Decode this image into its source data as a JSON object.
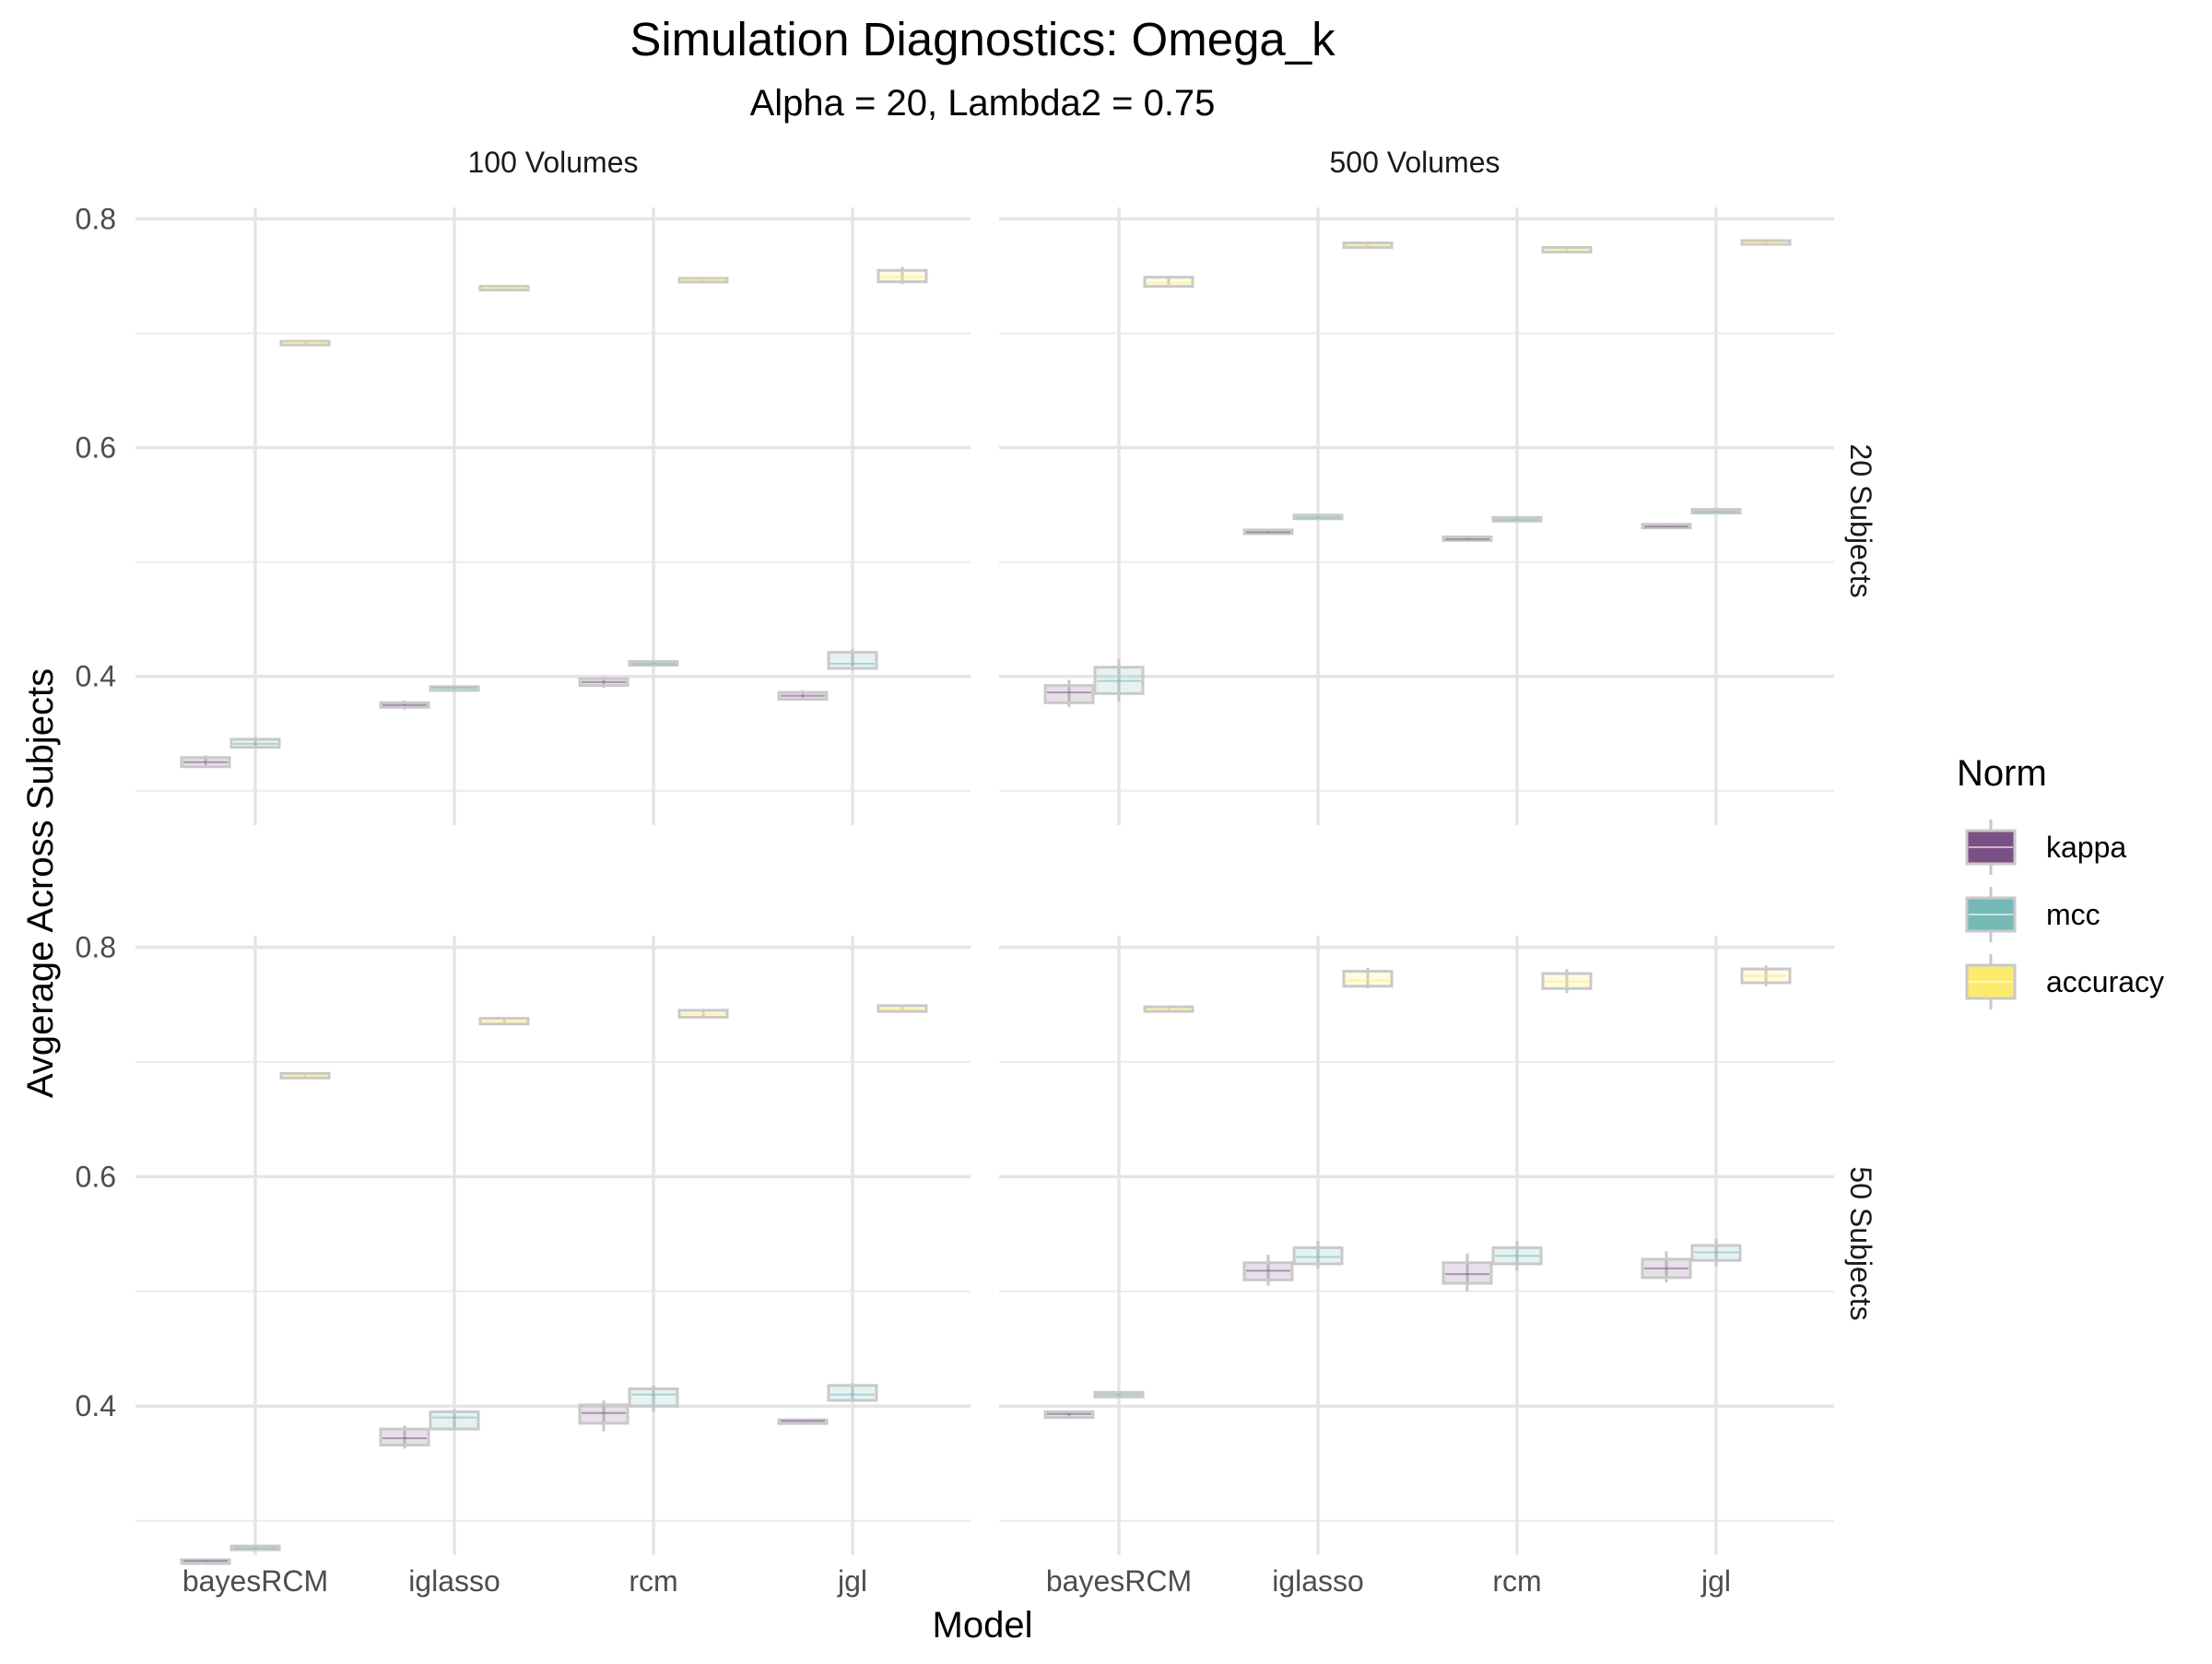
{
  "chart_data": {
    "type": "box",
    "title": "Simulation Diagnostics: Omega_k",
    "subtitle": "Alpha = 20, Lambda2 = 0.75",
    "xlabel": "Model",
    "ylabel": "Avgerage Across Subjects",
    "categories": [
      "bayesRCM",
      "iglasso",
      "rcm",
      "jgl"
    ],
    "y_ticks": [
      "0.4",
      "0.6",
      "0.8"
    ],
    "ylim": [
      0.27,
      0.81
    ],
    "grid": true,
    "facet_columns": [
      "100 Volumes",
      "500 Volumes"
    ],
    "facet_rows": [
      "20 Subjects",
      "50 Subjects"
    ],
    "legend": {
      "title": "Norm",
      "position": "right",
      "items": [
        {
          "label": "kappa",
          "color": "#7b5185"
        },
        {
          "label": "mcc",
          "color": "#74b9b6"
        },
        {
          "label": "accuracy",
          "color": "#fdeb6e"
        }
      ]
    },
    "panels": [
      {
        "column": "100 Volumes",
        "row": "20 Subjects",
        "series": [
          {
            "name": "kappa",
            "boxes": [
              {
                "min": 0.32,
                "q1": 0.321,
                "median": 0.325,
                "q3": 0.329,
                "max": 0.331
              },
              {
                "min": 0.371,
                "q1": 0.373,
                "median": 0.375,
                "q3": 0.377,
                "max": 0.379
              },
              {
                "min": 0.39,
                "q1": 0.392,
                "median": 0.395,
                "q3": 0.398,
                "max": 0.4
              },
              {
                "min": 0.379,
                "q1": 0.38,
                "median": 0.383,
                "q3": 0.386,
                "max": 0.388
              }
            ]
          },
          {
            "name": "mcc",
            "boxes": [
              {
                "min": 0.337,
                "q1": 0.338,
                "median": 0.341,
                "q3": 0.345,
                "max": 0.347
              },
              {
                "min": 0.387,
                "q1": 0.388,
                "median": 0.39,
                "q3": 0.391,
                "max": 0.392
              },
              {
                "min": 0.409,
                "q1": 0.41,
                "median": 0.411,
                "q3": 0.413,
                "max": 0.414
              },
              {
                "min": 0.405,
                "q1": 0.407,
                "median": 0.411,
                "q3": 0.421,
                "max": 0.424
              }
            ]
          },
          {
            "name": "accuracy",
            "boxes": [
              {
                "min": 0.69,
                "q1": 0.691,
                "median": 0.692,
                "q3": 0.693,
                "max": 0.693
              },
              {
                "min": 0.739,
                "q1": 0.739,
                "median": 0.74,
                "q3": 0.741,
                "max": 0.741
              },
              {
                "min": 0.746,
                "q1": 0.746,
                "median": 0.747,
                "q3": 0.748,
                "max": 0.749
              },
              {
                "min": 0.743,
                "q1": 0.745,
                "median": 0.749,
                "q3": 0.755,
                "max": 0.758
              }
            ]
          }
        ]
      },
      {
        "column": "500 Volumes",
        "row": "20 Subjects",
        "series": [
          {
            "name": "kappa",
            "boxes": [
              {
                "min": 0.373,
                "q1": 0.377,
                "median": 0.386,
                "q3": 0.392,
                "max": 0.397
              },
              {
                "min": 0.524,
                "q1": 0.525,
                "median": 0.526,
                "q3": 0.528,
                "max": 0.529
              },
              {
                "min": 0.518,
                "q1": 0.519,
                "median": 0.52,
                "q3": 0.522,
                "max": 0.523
              },
              {
                "min": 0.529,
                "q1": 0.53,
                "median": 0.531,
                "q3": 0.533,
                "max": 0.534
              }
            ]
          },
          {
            "name": "mcc",
            "boxes": [
              {
                "min": 0.378,
                "q1": 0.385,
                "median": 0.396,
                "q3": 0.408,
                "max": 0.415
              },
              {
                "min": 0.537,
                "q1": 0.538,
                "median": 0.539,
                "q3": 0.541,
                "max": 0.542
              },
              {
                "min": 0.535,
                "q1": 0.536,
                "median": 0.537,
                "q3": 0.539,
                "max": 0.54
              },
              {
                "min": 0.542,
                "q1": 0.543,
                "median": 0.544,
                "q3": 0.546,
                "max": 0.547
              }
            ]
          },
          {
            "name": "accuracy",
            "boxes": [
              {
                "min": 0.74,
                "q1": 0.741,
                "median": 0.744,
                "q3": 0.749,
                "max": 0.75
              },
              {
                "min": 0.774,
                "q1": 0.775,
                "median": 0.777,
                "q3": 0.779,
                "max": 0.779
              },
              {
                "min": 0.77,
                "q1": 0.771,
                "median": 0.773,
                "q3": 0.775,
                "max": 0.776
              },
              {
                "min": 0.778,
                "q1": 0.778,
                "median": 0.779,
                "q3": 0.781,
                "max": 0.781
              }
            ]
          }
        ]
      },
      {
        "column": "100 Volumes",
        "row": "50 Subjects",
        "series": [
          {
            "name": "kappa",
            "boxes": [
              {
                "min": 0.264,
                "q1": 0.264,
                "median": 0.265,
                "q3": 0.266,
                "max": 0.266
              },
              {
                "min": 0.363,
                "q1": 0.366,
                "median": 0.372,
                "q3": 0.38,
                "max": 0.383
              },
              {
                "min": 0.378,
                "q1": 0.385,
                "median": 0.394,
                "q3": 0.401,
                "max": 0.405
              },
              {
                "min": 0.385,
                "q1": 0.385,
                "median": 0.387,
                "q3": 0.388,
                "max": 0.388
              }
            ]
          },
          {
            "name": "mcc",
            "boxes": [
              {
                "min": 0.275,
                "q1": 0.275,
                "median": 0.276,
                "q3": 0.278,
                "max": 0.278
              },
              {
                "min": 0.38,
                "q1": 0.38,
                "median": 0.39,
                "q3": 0.395,
                "max": 0.397
              },
              {
                "min": 0.395,
                "q1": 0.4,
                "median": 0.41,
                "q3": 0.415,
                "max": 0.418
              },
              {
                "min": 0.405,
                "q1": 0.405,
                "median": 0.41,
                "q3": 0.418,
                "max": 0.42
              }
            ]
          },
          {
            "name": "accuracy",
            "boxes": [
              {
                "min": 0.686,
                "q1": 0.686,
                "median": 0.688,
                "q3": 0.69,
                "max": 0.69
              },
              {
                "min": 0.733,
                "q1": 0.733,
                "median": 0.735,
                "q3": 0.738,
                "max": 0.738
              },
              {
                "min": 0.739,
                "q1": 0.739,
                "median": 0.742,
                "q3": 0.745,
                "max": 0.745
              },
              {
                "min": 0.744,
                "q1": 0.744,
                "median": 0.746,
                "q3": 0.749,
                "max": 0.749
              }
            ]
          }
        ]
      },
      {
        "column": "500 Volumes",
        "row": "50 Subjects",
        "series": [
          {
            "name": "kappa",
            "boxes": [
              {
                "min": 0.39,
                "q1": 0.39,
                "median": 0.393,
                "q3": 0.395,
                "max": 0.395
              },
              {
                "min": 0.505,
                "q1": 0.51,
                "median": 0.518,
                "q3": 0.525,
                "max": 0.532
              },
              {
                "min": 0.5,
                "q1": 0.507,
                "median": 0.515,
                "q3": 0.525,
                "max": 0.533
              },
              {
                "min": 0.508,
                "q1": 0.512,
                "median": 0.52,
                "q3": 0.528,
                "max": 0.535
              }
            ]
          },
          {
            "name": "mcc",
            "boxes": [
              {
                "min": 0.408,
                "q1": 0.408,
                "median": 0.41,
                "q3": 0.412,
                "max": 0.412
              },
              {
                "min": 0.52,
                "q1": 0.524,
                "median": 0.53,
                "q3": 0.538,
                "max": 0.544
              },
              {
                "min": 0.518,
                "q1": 0.524,
                "median": 0.531,
                "q3": 0.538,
                "max": 0.544
              },
              {
                "min": 0.522,
                "q1": 0.527,
                "median": 0.534,
                "q3": 0.54,
                "max": 0.546
              }
            ]
          },
          {
            "name": "accuracy",
            "boxes": [
              {
                "min": 0.744,
                "q1": 0.744,
                "median": 0.746,
                "q3": 0.748,
                "max": 0.748
              },
              {
                "min": 0.764,
                "q1": 0.766,
                "median": 0.771,
                "q3": 0.779,
                "max": 0.782
              },
              {
                "min": 0.76,
                "q1": 0.764,
                "median": 0.77,
                "q3": 0.777,
                "max": 0.781
              },
              {
                "min": 0.766,
                "q1": 0.769,
                "median": 0.775,
                "q3": 0.781,
                "max": 0.784
              }
            ]
          }
        ]
      }
    ]
  }
}
